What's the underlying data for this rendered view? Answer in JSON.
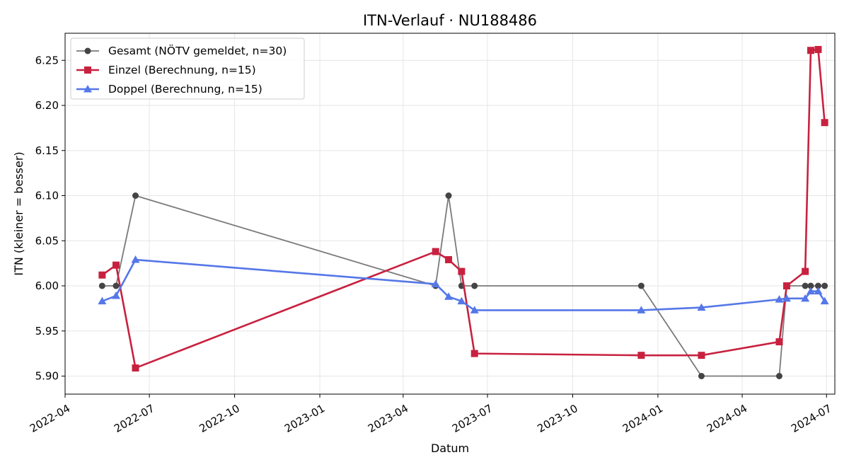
{
  "chart_data": {
    "type": "line",
    "title": "ITN-Verlauf · NU188486",
    "xlabel": "Datum",
    "ylabel": "ITN  (kleiner = besser)",
    "x_type": "date",
    "xlim": [
      "2022-04-01",
      "2024-07-10"
    ],
    "ylim": [
      5.88,
      6.28
    ],
    "y_ticks": [
      5.9,
      5.95,
      6.0,
      6.05,
      6.1,
      6.15,
      6.2,
      6.25
    ],
    "x_ticks": [
      "2022-04",
      "2022-07",
      "2022-10",
      "2023-01",
      "2023-04",
      "2023-07",
      "2023-10",
      "2024-01",
      "2024-04",
      "2024-07"
    ],
    "grid": true,
    "legend_position": "top-left",
    "series": [
      {
        "name": "Gesamt (NÖTV gemeldet, n=30)",
        "color": "#7a7a7a",
        "marker_color": "#444444",
        "marker": "circle",
        "x": [
          "2022-05-11",
          "2022-05-26",
          "2022-06-16",
          "2023-05-06",
          "2023-05-20",
          "2023-06-03",
          "2023-06-17",
          "2023-12-14",
          "2024-02-17",
          "2024-05-11",
          "2024-05-19",
          "2024-06-08",
          "2024-06-14",
          "2024-06-22",
          "2024-06-29"
        ],
        "y": [
          6.0,
          6.0,
          6.1,
          6.0,
          6.1,
          6.0,
          6.0,
          6.0,
          5.9,
          5.9,
          6.0,
          6.0,
          6.0,
          6.0,
          6.0
        ]
      },
      {
        "name": "Einzel (Berechnung, n=15)",
        "color": "#c8213f",
        "marker": "square",
        "x": [
          "2022-05-11",
          "2022-05-26",
          "2022-06-16",
          "2023-05-06",
          "2023-05-20",
          "2023-06-03",
          "2023-06-17",
          "2023-12-14",
          "2024-02-17",
          "2024-05-11",
          "2024-05-19",
          "2024-06-08",
          "2024-06-14",
          "2024-06-22",
          "2024-06-29"
        ],
        "y": [
          6.012,
          6.023,
          5.909,
          6.038,
          6.029,
          6.016,
          5.925,
          5.923,
          5.923,
          5.938,
          6.0,
          6.016,
          6.261,
          6.262,
          6.181
        ]
      },
      {
        "name": "Doppel (Berechnung, n=15)",
        "color": "#5577e8",
        "marker": "triangle",
        "x": [
          "2022-05-11",
          "2022-05-26",
          "2022-06-16",
          "2023-05-06",
          "2023-05-20",
          "2023-06-03",
          "2023-06-17",
          "2023-12-14",
          "2024-02-17",
          "2024-05-11",
          "2024-05-19",
          "2024-06-08",
          "2024-06-14",
          "2024-06-22",
          "2024-06-29"
        ],
        "y": [
          5.983,
          5.989,
          6.029,
          6.002,
          5.988,
          5.983,
          5.973,
          5.973,
          5.976,
          5.985,
          5.986,
          5.986,
          5.994,
          5.994,
          5.983
        ]
      }
    ]
  }
}
